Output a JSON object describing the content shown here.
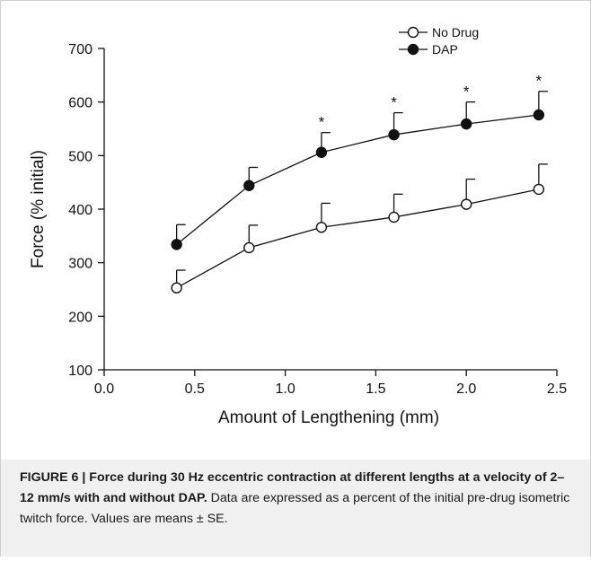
{
  "chart_data": {
    "type": "line",
    "xlabel": "Amount of Lengthening (mm)",
    "ylabel": "Force (% initial)",
    "xlim": [
      0.0,
      2.5
    ],
    "ylim": [
      100,
      700
    ],
    "x_ticks": [
      "0.0",
      "0.5",
      "1.0",
      "1.5",
      "2.0",
      "2.5"
    ],
    "y_ticks": [
      "100",
      "200",
      "300",
      "400",
      "500",
      "600",
      "700"
    ],
    "grid": false,
    "legend_position": "top-right",
    "x": [
      0.4,
      0.8,
      1.2,
      1.6,
      2.0,
      2.4
    ],
    "series": [
      {
        "name": "No Drug",
        "marker": "open-circle",
        "values": [
          253,
          328,
          366,
          385,
          409,
          437
        ],
        "error": [
          33,
          42,
          45,
          43,
          47,
          47
        ]
      },
      {
        "name": "DAP",
        "marker": "filled-circle",
        "values": [
          334,
          444,
          506,
          539,
          559,
          576
        ],
        "error": [
          37,
          34,
          37,
          41,
          41,
          44
        ]
      }
    ],
    "annotations": [
      {
        "x": 1.2,
        "text": "*"
      },
      {
        "x": 1.6,
        "text": "*"
      },
      {
        "x": 2.0,
        "text": "*"
      },
      {
        "x": 2.4,
        "text": "*"
      }
    ]
  },
  "caption": {
    "bold": "FIGURE 6 | Force during 30 Hz eccentric contraction at different lengths at a velocity of 2–12 mm/s with and without DAP.",
    "text": " Data are expressed as a percent of the initial pre-drug isometric twitch force. Values are means ± SE."
  }
}
